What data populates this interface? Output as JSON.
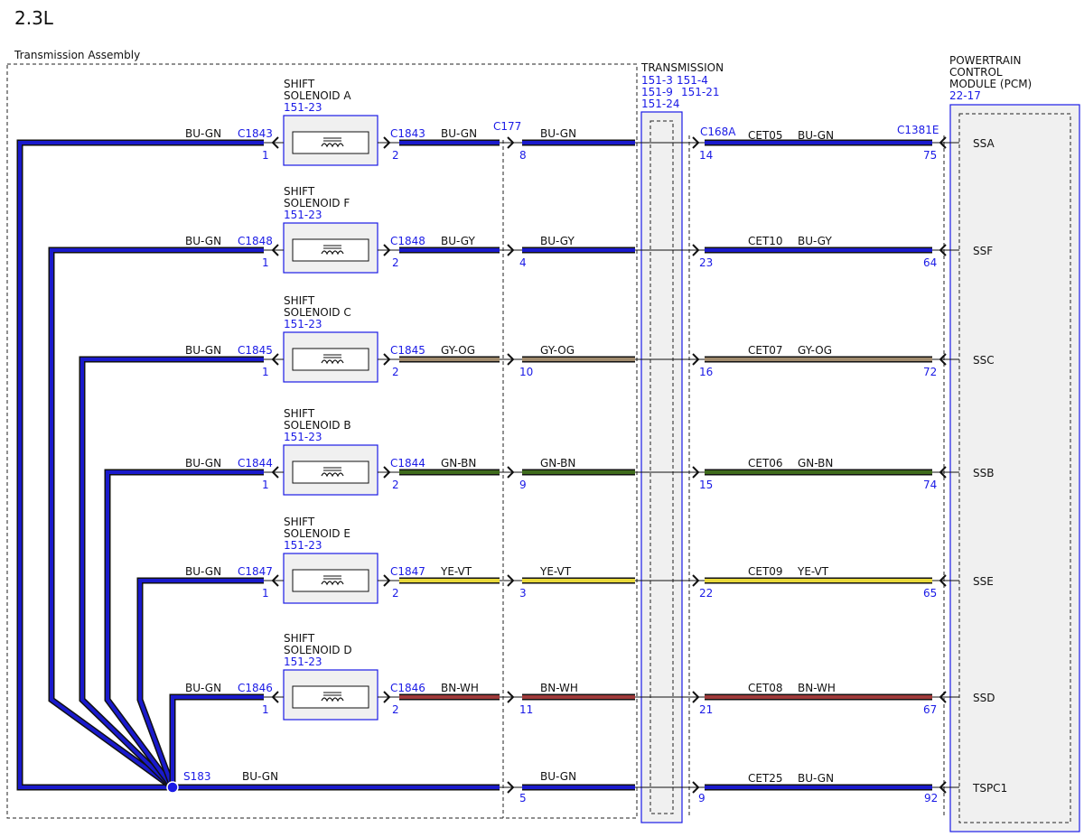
{
  "page_title": "2.3L",
  "assembly_label": "Transmission Assembly",
  "transmission": {
    "title": "TRANSMISSION",
    "ref_line1a": "151-3",
    "ref_line1b": "151-4",
    "ref_line2a": "151-9",
    "ref_line2b": "151-21",
    "ref_line3": "151-24"
  },
  "pcm": {
    "title_line1": "POWERTRAIN",
    "title_line2": "CONTROL",
    "title_line3": "MODULE (PCM)",
    "ref": "22-17"
  },
  "connectors": {
    "c177": "C177",
    "c168a": "C168A",
    "c1381e": "C1381E"
  },
  "splice": {
    "label": "S183",
    "wire_color": "BU-GN"
  },
  "colors": {
    "BU-GN": "#1a1acc",
    "BU-GY": "#1a1acc",
    "GY-OG": "#a08a6c",
    "GN-BN": "#3f6b1c",
    "YE-VT": "#e8d83a",
    "BN-WH": "#a03a3a"
  },
  "rows": [
    {
      "sol_line1": "SHIFT",
      "sol_line2": "SOLENOID A",
      "sol_ref": "151-23",
      "left_wire": "BU-GN",
      "left_conn": "C1843",
      "left_pin": "1",
      "right_conn": "C1843",
      "right_pin": "2",
      "wire_color": "BU-GN",
      "c177_pin": "8",
      "c168_pin": "14",
      "circuit": "CET05",
      "pcm_pin": "75",
      "pcm_label": "SSA"
    },
    {
      "sol_line1": "SHIFT",
      "sol_line2": "SOLENOID F",
      "sol_ref": "151-23",
      "left_wire": "BU-GN",
      "left_conn": "C1848",
      "left_pin": "1",
      "right_conn": "C1848",
      "right_pin": "2",
      "wire_color": "BU-GY",
      "c177_pin": "4",
      "c168_pin": "23",
      "circuit": "CET10",
      "pcm_pin": "64",
      "pcm_label": "SSF"
    },
    {
      "sol_line1": "SHIFT",
      "sol_line2": "SOLENOID C",
      "sol_ref": "151-23",
      "left_wire": "BU-GN",
      "left_conn": "C1845",
      "left_pin": "1",
      "right_conn": "C1845",
      "right_pin": "2",
      "wire_color": "GY-OG",
      "c177_pin": "10",
      "c168_pin": "16",
      "circuit": "CET07",
      "pcm_pin": "72",
      "pcm_label": "SSC"
    },
    {
      "sol_line1": "SHIFT",
      "sol_line2": "SOLENOID B",
      "sol_ref": "151-23",
      "left_wire": "BU-GN",
      "left_conn": "C1844",
      "left_pin": "1",
      "right_conn": "C1844",
      "right_pin": "2",
      "wire_color": "GN-BN",
      "c177_pin": "9",
      "c168_pin": "15",
      "circuit": "CET06",
      "pcm_pin": "74",
      "pcm_label": "SSB"
    },
    {
      "sol_line1": "SHIFT",
      "sol_line2": "SOLENOID E",
      "sol_ref": "151-23",
      "left_wire": "BU-GN",
      "left_conn": "C1847",
      "left_pin": "1",
      "right_conn": "C1847",
      "right_pin": "2",
      "wire_color": "YE-VT",
      "c177_pin": "3",
      "c168_pin": "22",
      "circuit": "CET09",
      "pcm_pin": "65",
      "pcm_label": "SSE"
    },
    {
      "sol_line1": "SHIFT",
      "sol_line2": "SOLENOID D",
      "sol_ref": "151-23",
      "left_wire": "BU-GN",
      "left_conn": "C1846",
      "left_pin": "1",
      "right_conn": "C1846",
      "right_pin": "2",
      "wire_color": "BN-WH",
      "c177_pin": "11",
      "c168_pin": "21",
      "circuit": "CET08",
      "pcm_pin": "67",
      "pcm_label": "SSD"
    }
  ],
  "bottom": {
    "wire_color": "BU-GN",
    "c177_pin": "5",
    "c168_pin": "9",
    "circuit": "CET25",
    "pcm_pin": "92",
    "pcm_label": "TSPC1"
  }
}
